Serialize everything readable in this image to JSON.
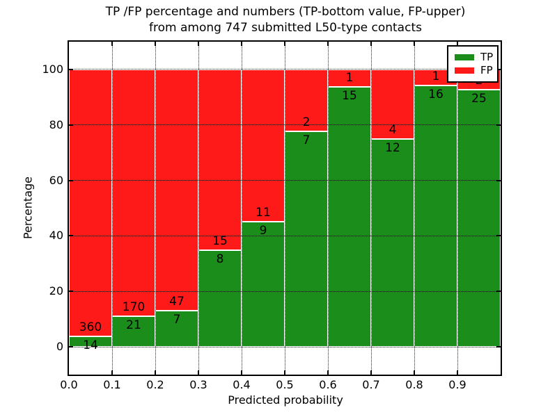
{
  "figure": {
    "title_line1": "TP /FP percentage and numbers (TP-bottom value, FP-upper)",
    "title_line2": "from among 747 submitted L50-type contacts"
  },
  "chart_data": {
    "type": "bar",
    "stacked": true,
    "normalized_to_percent": true,
    "title": "TP /FP percentage and numbers (TP-bottom value, FP-upper) from among 747 submitted L50-type contacts",
    "xlabel": "Predicted probability",
    "ylabel": "Percentage",
    "xlim": [
      0.0,
      1.0
    ],
    "ylim": [
      -10,
      110
    ],
    "bar_width": 0.1,
    "x_tick_labels": [
      "0.0",
      "0.1",
      "0.2",
      "0.3",
      "0.4",
      "0.5",
      "0.6",
      "0.7",
      "0.8",
      "0.9"
    ],
    "y_ticks": [
      0,
      20,
      40,
      60,
      80,
      100
    ],
    "grid": true,
    "categories": [
      "0.0-0.1",
      "0.1-0.2",
      "0.2-0.3",
      "0.3-0.4",
      "0.4-0.5",
      "0.5-0.6",
      "0.6-0.7",
      "0.7-0.8",
      "0.8-0.9",
      "0.9-1.0"
    ],
    "series": [
      {
        "name": "TP",
        "color": "#1a8d1a",
        "values": [
          14,
          21,
          7,
          8,
          9,
          7,
          15,
          12,
          16,
          25
        ]
      },
      {
        "name": "FP",
        "color": "#ff1a1a",
        "values": [
          360,
          170,
          47,
          15,
          11,
          2,
          1,
          4,
          1,
          2
        ]
      }
    ],
    "tp_percent_heights": [
      3.7,
      11.0,
      13.0,
      34.8,
      45.0,
      77.8,
      93.8,
      75.0,
      94.1,
      92.6
    ],
    "total_contacts": 747,
    "legend": {
      "position": "upper right",
      "items": [
        {
          "label": "TP",
          "color": "#1a8d1a"
        },
        {
          "label": "FP",
          "color": "#ff1a1a"
        }
      ]
    }
  }
}
